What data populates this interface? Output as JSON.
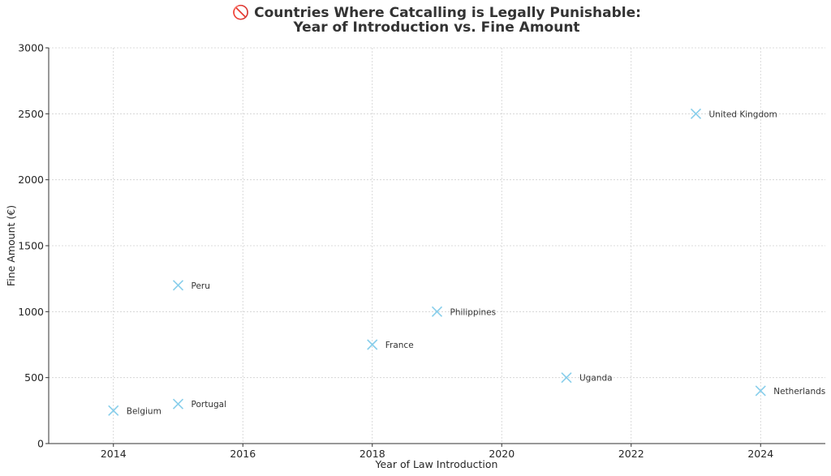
{
  "chart_data": {
    "type": "scatter",
    "title_line1": "🚫 Countries Where Catcalling is Legally Punishable:",
    "title_line2": "Year of Introduction vs. Fine Amount",
    "xlabel": "Year of Law Introduction",
    "ylabel": "Fine Amount (€)",
    "xlim": [
      2013,
      2025
    ],
    "ylim": [
      0,
      3000
    ],
    "xticks": [
      2014,
      2016,
      2018,
      2020,
      2022,
      2024
    ],
    "yticks": [
      0,
      500,
      1000,
      1500,
      2000,
      2500,
      3000
    ],
    "grid": true,
    "marker": "x",
    "marker_color": "#87CEEB",
    "points": [
      {
        "label": "Belgium",
        "x": 2014,
        "y": 250
      },
      {
        "label": "Portugal",
        "x": 2015,
        "y": 300
      },
      {
        "label": "Peru",
        "x": 2015,
        "y": 1200
      },
      {
        "label": "France",
        "x": 2018,
        "y": 750
      },
      {
        "label": "Philippines",
        "x": 2019,
        "y": 1000
      },
      {
        "label": "Uganda",
        "x": 2021,
        "y": 500
      },
      {
        "label": "United Kingdom",
        "x": 2023,
        "y": 2500
      },
      {
        "label": "Netherlands",
        "x": 2024,
        "y": 400
      }
    ]
  }
}
